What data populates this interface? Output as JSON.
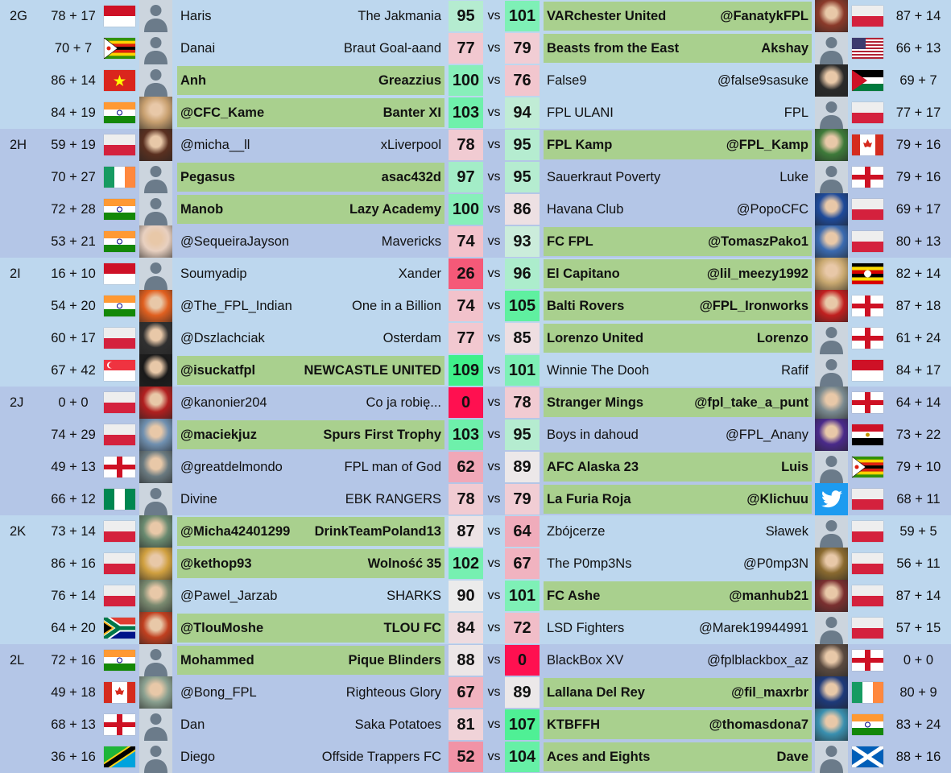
{
  "colors": {
    "group_bg_a": "#bdd7ee",
    "group_bg_b": "#b4c6e7",
    "winner_bg": "#a9d08e",
    "avatar_default_bg": "#ccd5de",
    "avatar_silhouette": "#6b7b8a",
    "score_scale": [
      [
        0,
        "#ff1050"
      ],
      [
        30,
        "#f4647e"
      ],
      [
        62,
        "#f0a8b8"
      ],
      [
        77,
        "#f2c8d0"
      ],
      [
        90,
        "#ebebeb"
      ],
      [
        95,
        "#b5ecd0"
      ],
      [
        101,
        "#7ef0b6"
      ],
      [
        109,
        "#3ff08a"
      ]
    ]
  },
  "vs_label": "vs",
  "groups": [
    {
      "label": "2G",
      "rows": [
        {
          "l": {
            "pts": "78 + 17",
            "flag": "indonesia",
            "avatar": "default",
            "manager": "Haris",
            "team": "The Jakmania",
            "score": 95
          },
          "r": {
            "team": "VARchester United",
            "manager": "@FanatykFPL",
            "avatar": "photo",
            "avatar_color": "#8a3a2a",
            "flag": "poland",
            "pts": "87 + 14",
            "score": 101
          }
        },
        {
          "l": {
            "pts": "70 + 7",
            "flag": "zimbabwe",
            "avatar": "default",
            "manager": "Danai",
            "team": "Braut Goal-aand",
            "score": 77
          },
          "r": {
            "team": "Beasts from the East",
            "manager": "Akshay",
            "avatar": "default",
            "flag": "usa",
            "pts": "66 + 13",
            "score": 79
          }
        },
        {
          "l": {
            "pts": "86 + 14",
            "flag": "vietnam",
            "avatar": "default",
            "manager": "Anh",
            "team": "Greazzius",
            "score": 100
          },
          "r": {
            "team": "False9",
            "manager": "@false9sasuke",
            "avatar": "photo",
            "avatar_color": "#2a2a2a",
            "flag": "jordan",
            "pts": "69 + 7",
            "score": 76
          }
        },
        {
          "l": {
            "pts": "84 + 19",
            "flag": "india",
            "avatar": "photo",
            "avatar_color": "#c8a070",
            "manager": "@CFC_Kame",
            "team": "Banter XI",
            "score": 103
          },
          "r": {
            "team": "FPL ULANI",
            "manager": "FPL",
            "avatar": "default",
            "flag": "poland",
            "pts": "77 + 17",
            "score": 94
          }
        }
      ]
    },
    {
      "label": "2H",
      "rows": [
        {
          "l": {
            "pts": "59 + 19",
            "flag": "poland",
            "avatar": "photo",
            "avatar_color": "#5a3020",
            "manager": "@micha__ll",
            "team": "xLiverpool",
            "score": 78
          },
          "r": {
            "team": "FPL Kamp",
            "manager": "@FPL_Kamp",
            "avatar": "photo",
            "avatar_color": "#3e7a3a",
            "flag": "canada",
            "pts": "79 + 16",
            "score": 95
          }
        },
        {
          "l": {
            "pts": "70 + 27",
            "flag": "ireland",
            "avatar": "default",
            "manager": "Pegasus",
            "team": "asac432d",
            "score": 97
          },
          "r": {
            "team": "Sauerkraut Poverty",
            "manager": "Luke",
            "avatar": "default",
            "flag": "england",
            "pts": "79 + 16",
            "score": 95
          }
        },
        {
          "l": {
            "pts": "72 + 28",
            "flag": "india",
            "avatar": "default",
            "manager": "Manob",
            "team": "Lazy Academy",
            "score": 100
          },
          "r": {
            "team": "Havana Club",
            "manager": "@PopoCFC",
            "avatar": "photo",
            "avatar_color": "#1e4a9a",
            "flag": "poland",
            "pts": "69 + 17",
            "score": 86
          }
        },
        {
          "l": {
            "pts": "53 + 21",
            "flag": "india",
            "avatar": "photo",
            "avatar_color": "#e8d0c0",
            "manager": "@SequeiraJayson",
            "team": "Mavericks",
            "score": 74
          },
          "r": {
            "team": "FC FPL",
            "manager": "@TomaszPako1",
            "avatar": "photo",
            "avatar_color": "#3a6ab0",
            "flag": "poland",
            "pts": "80 + 13",
            "score": 93
          }
        }
      ]
    },
    {
      "label": "2I",
      "rows": [
        {
          "l": {
            "pts": "16 + 10",
            "flag": "indonesia",
            "avatar": "default",
            "manager": "Soumyadip",
            "team": "Xander",
            "score": 26
          },
          "r": {
            "team": "El Capitano",
            "manager": "@lil_meezy1992",
            "avatar": "photo",
            "avatar_color": "#c8a870",
            "flag": "uganda",
            "pts": "82 + 14",
            "score": 96
          }
        },
        {
          "l": {
            "pts": "54 + 20",
            "flag": "india",
            "avatar": "photo",
            "avatar_color": "#e06020",
            "manager": "@The_FPL_Indian",
            "team": "One in a Billion",
            "score": 74
          },
          "r": {
            "team": "Balti Rovers",
            "manager": "@FPL_Ironworks",
            "avatar": "photo",
            "avatar_color": "#c02020",
            "flag": "england",
            "pts": "87 + 18",
            "score": 105
          }
        },
        {
          "l": {
            "pts": "60 + 17",
            "flag": "poland",
            "avatar": "photo",
            "avatar_color": "#303030",
            "manager": "@Dszlachciak",
            "team": "Osterdam",
            "score": 77
          },
          "r": {
            "team": "Lorenzo United",
            "manager": "Lorenzo",
            "avatar": "default",
            "flag": "england",
            "pts": "61 + 24",
            "score": 85
          }
        },
        {
          "l": {
            "pts": "67 + 42",
            "flag": "singapore",
            "avatar": "photo",
            "avatar_color": "#1a1a1a",
            "manager": "@isuckatfpl",
            "team": "NEWCASTLE UNITED",
            "score": 109
          },
          "r": {
            "team": "Winnie The Dooh",
            "manager": "Rafif",
            "avatar": "default",
            "flag": "indonesia",
            "pts": "84 + 17",
            "score": 101
          }
        }
      ]
    },
    {
      "label": "2J",
      "rows": [
        {
          "l": {
            "pts": "0 + 0",
            "flag": "poland",
            "avatar": "photo",
            "avatar_color": "#b02020",
            "manager": "@kanonier204",
            "team": "Co ja robię...",
            "score": 0
          },
          "r": {
            "team": "Stranger Mings",
            "manager": "@fpl_take_a_punt",
            "avatar": "photo",
            "avatar_color": "#7a8a90",
            "flag": "england",
            "pts": "64 + 14",
            "score": 78
          }
        },
        {
          "l": {
            "pts": "74 + 29",
            "flag": "poland",
            "avatar": "photo",
            "avatar_color": "#7090b0",
            "manager": "@maciekjuz",
            "team": "Spurs First Trophy",
            "score": 103
          },
          "r": {
            "team": "Boys in dahoud",
            "manager": "@FPL_Anany",
            "avatar": "photo",
            "avatar_color": "#4a2a8a",
            "flag": "egypt",
            "pts": "73 + 22",
            "score": 95
          }
        },
        {
          "l": {
            "pts": "49 + 13",
            "flag": "england",
            "avatar": "photo",
            "avatar_color": "#6a7a80",
            "manager": "@greatdelmondo",
            "team": "FPL man of God",
            "score": 62
          },
          "r": {
            "team": "AFC Alaska 23",
            "manager": "Luis",
            "avatar": "default",
            "flag": "zimbabwe",
            "pts": "79 + 10",
            "score": 89
          }
        },
        {
          "l": {
            "pts": "66 + 12",
            "flag": "nigeria",
            "avatar": "default",
            "manager": "Divine",
            "team": "EBK RANGERS",
            "score": 78
          },
          "r": {
            "team": "La Furia Roja",
            "manager": "@Klichuu",
            "avatar": "twitter",
            "flag": "poland",
            "pts": "68 + 11",
            "score": 79
          }
        }
      ]
    },
    {
      "label": "2K",
      "rows": [
        {
          "l": {
            "pts": "73 + 14",
            "flag": "poland",
            "avatar": "photo",
            "avatar_color": "#6a8a70",
            "manager": "@Micha42401299",
            "team": "DrinkTeamPoland13",
            "score": 87
          },
          "r": {
            "team": "Zbójcerze",
            "manager": "Sławek",
            "avatar": "default",
            "flag": "poland",
            "pts": "59 + 5",
            "score": 64
          }
        },
        {
          "l": {
            "pts": "86 + 16",
            "flag": "poland",
            "avatar": "photo",
            "avatar_color": "#d0a040",
            "manager": "@kethop93",
            "team": "Wolność 35",
            "score": 102
          },
          "r": {
            "team": "The P0mp3Ns",
            "manager": "@P0mp3N",
            "avatar": "photo",
            "avatar_color": "#8a6a30",
            "flag": "poland",
            "pts": "56 + 11",
            "score": 67
          }
        },
        {
          "l": {
            "pts": "76 + 14",
            "flag": "poland",
            "avatar": "photo",
            "avatar_color": "#7a8a70",
            "manager": "@Pawel_Jarzab",
            "team": "SHARKS",
            "score": 90
          },
          "r": {
            "team": "FC Ashe",
            "manager": "@manhub21",
            "avatar": "photo",
            "avatar_color": "#7a3030",
            "flag": "poland",
            "pts": "87 + 14",
            "score": 101
          }
        },
        {
          "l": {
            "pts": "64 + 20",
            "flag": "southafrica",
            "avatar": "photo",
            "avatar_color": "#c04020",
            "manager": "@TlouMoshe",
            "team": "TLOU FC",
            "score": 84
          },
          "r": {
            "team": "LSD Fighters",
            "manager": "@Marek19944991",
            "avatar": "default",
            "flag": "poland",
            "pts": "57 + 15",
            "score": 72
          }
        }
      ]
    },
    {
      "label": "2L",
      "rows": [
        {
          "l": {
            "pts": "72 + 16",
            "flag": "india",
            "avatar": "default",
            "manager": "Mohammed",
            "team": "Pique Blinders",
            "score": 88
          },
          "r": {
            "team": "BlackBox XV",
            "manager": "@fplblackbox_az",
            "avatar": "photo",
            "avatar_color": "#5a4a40",
            "flag": "england",
            "pts": "0 + 0",
            "score": 0
          }
        },
        {
          "l": {
            "pts": "49 + 18",
            "flag": "canada",
            "avatar": "photo",
            "avatar_color": "#8aa090",
            "manager": "@Bong_FPL",
            "team": "Righteous Glory",
            "score": 67
          },
          "r": {
            "team": "Lallana Del Rey",
            "manager": "@fil_maxrbr",
            "avatar": "photo",
            "avatar_color": "#1e3a7a",
            "flag": "ireland",
            "pts": "80 + 9",
            "score": 89
          }
        },
        {
          "l": {
            "pts": "68 + 13",
            "flag": "england",
            "avatar": "default",
            "manager": "Dan",
            "team": "Saka Potatoes",
            "score": 81
          },
          "r": {
            "team": "KTBFFH",
            "manager": "@thomasdona7",
            "avatar": "photo",
            "avatar_color": "#3a90b0",
            "flag": "india",
            "pts": "83 + 24",
            "score": 107
          }
        },
        {
          "l": {
            "pts": "36 + 16",
            "flag": "tanzania",
            "avatar": "default",
            "manager": "Diego",
            "team": "Offside Trappers FC",
            "score": 52
          },
          "r": {
            "team": "Aces and Eights",
            "manager": "Dave",
            "avatar": "default",
            "flag": "scotland",
            "pts": "88 + 16",
            "score": 104
          }
        }
      ]
    }
  ]
}
